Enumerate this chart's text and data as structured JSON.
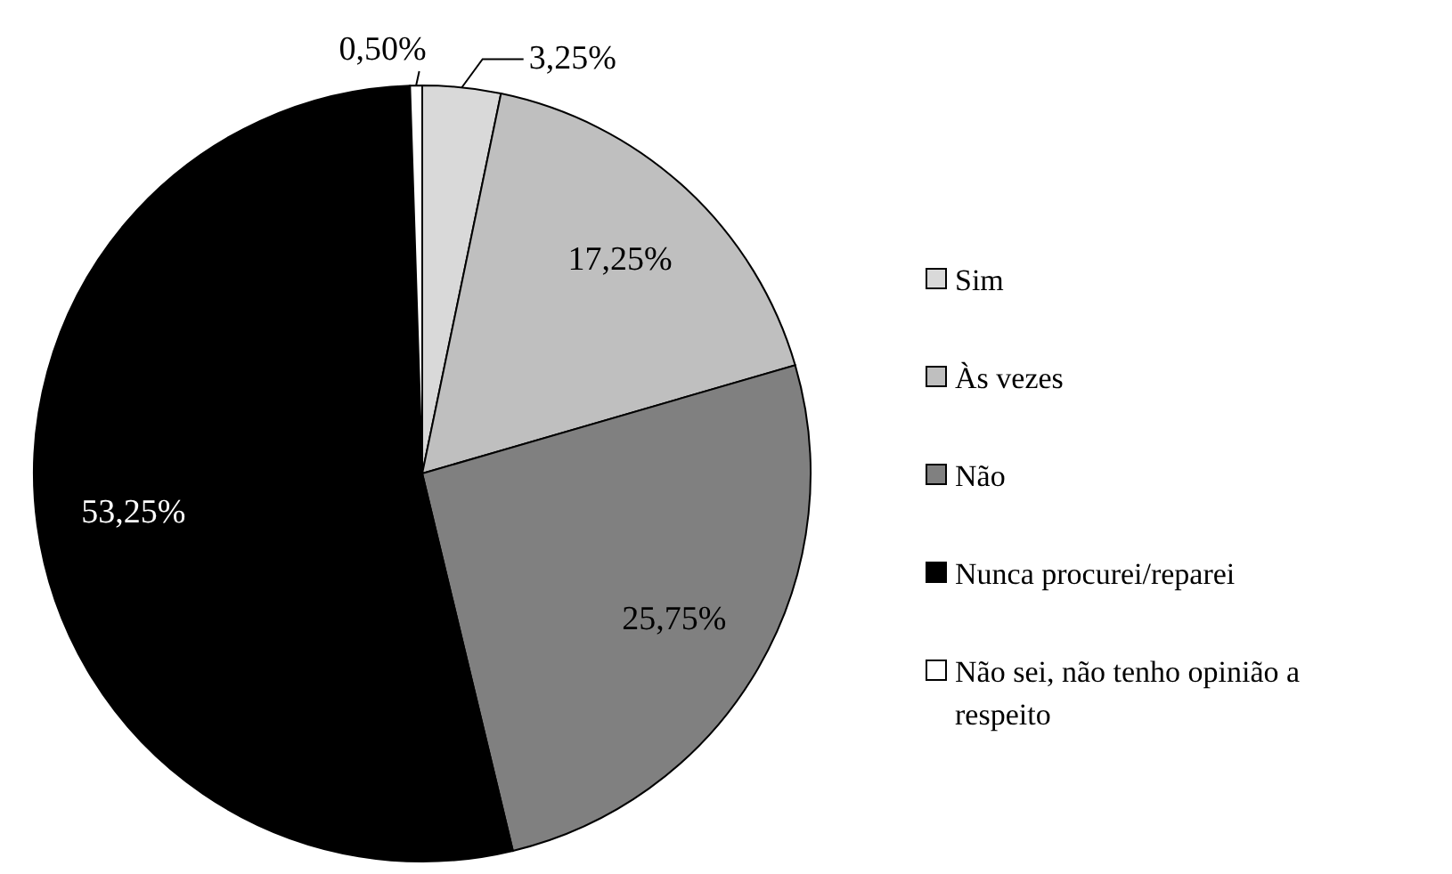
{
  "chart_data": {
    "type": "pie",
    "categories": [
      "Sim",
      "Às vezes",
      "Não",
      "Nunca procurei/reparei",
      "Não sei, não tenho opinião a respeito"
    ],
    "values": [
      3.25,
      17.25,
      25.75,
      53.25,
      0.5
    ],
    "colors": [
      "#d9d9d9",
      "#bfbfbf",
      "#808080",
      "#000000",
      "#ffffff"
    ],
    "value_labels": [
      "3,25%",
      "17,25%",
      "25,75%",
      "53,25%",
      "0,50%"
    ],
    "legend": "right"
  }
}
